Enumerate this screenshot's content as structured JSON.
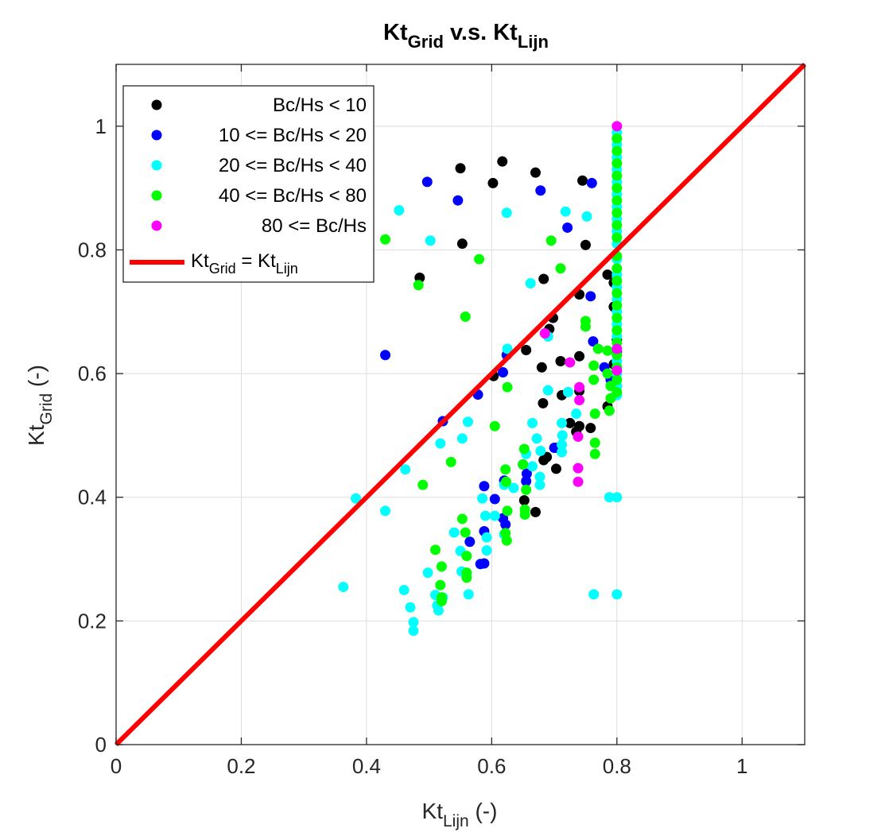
{
  "chart_data": {
    "type": "scatter",
    "title": {
      "main": "Kt",
      "sub1": "Grid",
      "mid": " v.s. Kt",
      "sub2": "Lijn"
    },
    "xlabel": {
      "main": "Kt",
      "sub": "Lijn",
      "suffix": " (-)"
    },
    "ylabel": {
      "main": "Kt",
      "sub": "Grid",
      "suffix": " (-)"
    },
    "xlim": [
      0,
      1.1
    ],
    "ylim": [
      0,
      1.1
    ],
    "xticks": [
      0,
      0.2,
      0.4,
      0.6,
      0.8,
      1
    ],
    "yticks": [
      0,
      0.2,
      0.4,
      0.6,
      0.8,
      1
    ],
    "xtick_labels": [
      "0",
      "0.2",
      "0.4",
      "0.6",
      "0.8",
      "1"
    ],
    "ytick_labels": [
      "0",
      "0.2",
      "0.4",
      "0.6",
      "0.8",
      "1"
    ],
    "grid": true,
    "legend_position": "top-left",
    "colors": {
      "black": "#000000",
      "blue": "#0000ff",
      "cyan": "#00ffff",
      "green": "#00ff00",
      "magenta": "#ff00ff",
      "red": "#ff0000"
    },
    "reference_line": {
      "label": {
        "main": "Kt",
        "sub1": "Grid",
        "mid": " = Kt",
        "sub2": "Lijn"
      },
      "color": "#ff0000",
      "x": [
        0,
        1.1
      ],
      "y": [
        0,
        1.1
      ]
    },
    "series": [
      {
        "name": "Bc/Hs < 10",
        "color": "#000000",
        "points": [
          [
            0.485,
            0.755
          ],
          [
            0.55,
            0.932
          ],
          [
            0.553,
            0.81
          ],
          [
            0.602,
            0.908
          ],
          [
            0.617,
            0.943
          ],
          [
            0.67,
            0.925
          ],
          [
            0.683,
            0.753
          ],
          [
            0.745,
            0.912
          ],
          [
            0.75,
            0.808
          ],
          [
            0.74,
            0.728
          ],
          [
            0.785,
            0.76
          ],
          [
            0.795,
            0.747
          ],
          [
            0.795,
            0.708
          ],
          [
            0.8,
            0.655
          ],
          [
            0.692,
            0.672
          ],
          [
            0.698,
            0.69
          ],
          [
            0.655,
            0.638
          ],
          [
            0.68,
            0.61
          ],
          [
            0.74,
            0.628
          ],
          [
            0.71,
            0.62
          ],
          [
            0.603,
            0.596
          ],
          [
            0.795,
            0.615
          ],
          [
            0.795,
            0.588
          ],
          [
            0.8,
            0.58
          ],
          [
            0.74,
            0.572
          ],
          [
            0.712,
            0.565
          ],
          [
            0.682,
            0.552
          ],
          [
            0.725,
            0.52
          ],
          [
            0.74,
            0.515
          ],
          [
            0.735,
            0.506
          ],
          [
            0.758,
            0.512
          ],
          [
            0.785,
            0.547
          ],
          [
            0.705,
            0.48
          ],
          [
            0.688,
            0.465
          ],
          [
            0.683,
            0.46
          ],
          [
            0.703,
            0.446
          ],
          [
            0.652,
            0.395
          ],
          [
            0.67,
            0.376
          ]
        ]
      },
      {
        "name": "10 <= Bc/Hs < 20",
        "color": "#0000ff",
        "points": [
          [
            0.497,
            0.91
          ],
          [
            0.546,
            0.88
          ],
          [
            0.678,
            0.896
          ],
          [
            0.76,
            0.908
          ],
          [
            0.721,
            0.836
          ],
          [
            0.758,
            0.725
          ],
          [
            0.43,
            0.63
          ],
          [
            0.762,
            0.652
          ],
          [
            0.624,
            0.63
          ],
          [
            0.618,
            0.602
          ],
          [
            0.578,
            0.566
          ],
          [
            0.522,
            0.523
          ],
          [
            0.78,
            0.61
          ],
          [
            0.79,
            0.59
          ],
          [
            0.8,
            0.635
          ],
          [
            0.65,
            0.453
          ],
          [
            0.656,
            0.438
          ],
          [
            0.655,
            0.426
          ],
          [
            0.62,
            0.427
          ],
          [
            0.588,
            0.418
          ],
          [
            0.605,
            0.397
          ],
          [
            0.618,
            0.366
          ],
          [
            0.622,
            0.356
          ],
          [
            0.588,
            0.345
          ],
          [
            0.565,
            0.328
          ],
          [
            0.582,
            0.292
          ],
          [
            0.588,
            0.293
          ],
          [
            0.7,
            0.48
          ]
        ]
      },
      {
        "name": "20 <= Bc/Hs < 40",
        "color": "#00ffff",
        "points": [
          [
            0.452,
            0.864
          ],
          [
            0.502,
            0.815
          ],
          [
            0.624,
            0.86
          ],
          [
            0.718,
            0.862
          ],
          [
            0.752,
            0.854
          ],
          [
            0.662,
            0.746
          ],
          [
            0.69,
            0.66
          ],
          [
            0.625,
            0.64
          ],
          [
            0.69,
            0.573
          ],
          [
            0.722,
            0.57
          ],
          [
            0.712,
            0.52
          ],
          [
            0.713,
            0.5
          ],
          [
            0.712,
            0.485
          ],
          [
            0.712,
            0.473
          ],
          [
            0.735,
            0.535
          ],
          [
            0.665,
            0.52
          ],
          [
            0.672,
            0.495
          ],
          [
            0.678,
            0.475
          ],
          [
            0.562,
            0.522
          ],
          [
            0.518,
            0.487
          ],
          [
            0.553,
            0.495
          ],
          [
            0.655,
            0.47
          ],
          [
            0.665,
            0.45
          ],
          [
            0.677,
            0.433
          ],
          [
            0.677,
            0.42
          ],
          [
            0.635,
            0.415
          ],
          [
            0.62,
            0.42
          ],
          [
            0.585,
            0.398
          ],
          [
            0.59,
            0.37
          ],
          [
            0.605,
            0.37
          ],
          [
            0.383,
            0.398
          ],
          [
            0.43,
            0.378
          ],
          [
            0.462,
            0.445
          ],
          [
            0.54,
            0.343
          ],
          [
            0.592,
            0.335
          ],
          [
            0.55,
            0.313
          ],
          [
            0.592,
            0.314
          ],
          [
            0.62,
            0.34
          ],
          [
            0.498,
            0.278
          ],
          [
            0.552,
            0.28
          ],
          [
            0.563,
            0.243
          ],
          [
            0.51,
            0.242
          ],
          [
            0.522,
            0.238
          ],
          [
            0.513,
            0.225
          ],
          [
            0.515,
            0.217
          ],
          [
            0.46,
            0.25
          ],
          [
            0.47,
            0.222
          ],
          [
            0.475,
            0.198
          ],
          [
            0.475,
            0.184
          ],
          [
            0.363,
            0.255
          ],
          [
            0.788,
            0.4
          ],
          [
            0.8,
            0.4
          ],
          [
            0.763,
            0.243
          ],
          [
            0.8,
            0.243
          ],
          [
            0.8,
            0.565
          ],
          [
            0.8,
            0.58
          ],
          [
            0.8,
            0.6
          ],
          [
            0.8,
            0.62
          ],
          [
            0.8,
            0.64
          ],
          [
            0.8,
            0.66
          ],
          [
            0.8,
            0.68
          ],
          [
            0.8,
            0.7
          ],
          [
            0.8,
            0.72
          ],
          [
            0.8,
            0.74
          ],
          [
            0.8,
            0.76
          ],
          [
            0.8,
            0.785
          ],
          [
            0.8,
            0.81
          ],
          [
            0.8,
            0.83
          ],
          [
            0.8,
            0.85
          ],
          [
            0.8,
            0.87
          ],
          [
            0.8,
            0.89
          ],
          [
            0.8,
            0.91
          ],
          [
            0.8,
            0.93
          ],
          [
            0.8,
            0.95
          ],
          [
            0.8,
            0.97
          ],
          [
            0.8,
            0.99
          ]
        ]
      },
      {
        "name": "40 <= Bc/Hs < 80",
        "color": "#00ff00",
        "points": [
          [
            0.43,
            0.817
          ],
          [
            0.695,
            0.815
          ],
          [
            0.58,
            0.785
          ],
          [
            0.71,
            0.77
          ],
          [
            0.483,
            0.743
          ],
          [
            0.558,
            0.692
          ],
          [
            0.75,
            0.685
          ],
          [
            0.75,
            0.676
          ],
          [
            0.77,
            0.64
          ],
          [
            0.785,
            0.637
          ],
          [
            0.625,
            0.578
          ],
          [
            0.763,
            0.613
          ],
          [
            0.763,
            0.59
          ],
          [
            0.785,
            0.6
          ],
          [
            0.79,
            0.58
          ],
          [
            0.79,
            0.56
          ],
          [
            0.788,
            0.54
          ],
          [
            0.765,
            0.535
          ],
          [
            0.605,
            0.515
          ],
          [
            0.535,
            0.457
          ],
          [
            0.652,
            0.478
          ],
          [
            0.765,
            0.488
          ],
          [
            0.765,
            0.47
          ],
          [
            0.65,
            0.453
          ],
          [
            0.622,
            0.445
          ],
          [
            0.623,
            0.425
          ],
          [
            0.655,
            0.412
          ],
          [
            0.625,
            0.378
          ],
          [
            0.653,
            0.38
          ],
          [
            0.653,
            0.372
          ],
          [
            0.49,
            0.42
          ],
          [
            0.553,
            0.365
          ],
          [
            0.558,
            0.343
          ],
          [
            0.622,
            0.342
          ],
          [
            0.624,
            0.33
          ],
          [
            0.51,
            0.315
          ],
          [
            0.52,
            0.288
          ],
          [
            0.56,
            0.305
          ],
          [
            0.56,
            0.278
          ],
          [
            0.56,
            0.27
          ],
          [
            0.518,
            0.258
          ],
          [
            0.52,
            0.238
          ],
          [
            0.52,
            0.232
          ],
          [
            0.8,
            0.57
          ],
          [
            0.8,
            0.59
          ],
          [
            0.8,
            0.61
          ],
          [
            0.8,
            0.63
          ],
          [
            0.8,
            0.65
          ],
          [
            0.8,
            0.67
          ],
          [
            0.8,
            0.69
          ],
          [
            0.8,
            0.71
          ],
          [
            0.8,
            0.73
          ],
          [
            0.8,
            0.75
          ],
          [
            0.8,
            0.77
          ],
          [
            0.8,
            0.79
          ],
          [
            0.8,
            0.82
          ],
          [
            0.8,
            0.84
          ],
          [
            0.8,
            0.86
          ],
          [
            0.8,
            0.88
          ],
          [
            0.8,
            0.9
          ],
          [
            0.8,
            0.92
          ],
          [
            0.8,
            0.94
          ],
          [
            0.8,
            0.96
          ],
          [
            0.8,
            0.98
          ]
        ]
      },
      {
        "name": "80 <= Bc/Hs",
        "color": "#ff00ff",
        "points": [
          [
            0.685,
            0.665
          ],
          [
            0.725,
            0.618
          ],
          [
            0.74,
            0.578
          ],
          [
            0.74,
            0.557
          ],
          [
            0.738,
            0.498
          ],
          [
            0.738,
            0.447
          ],
          [
            0.738,
            0.425
          ],
          [
            0.8,
            0.605
          ],
          [
            0.8,
            0.64
          ],
          [
            0.8,
            1.0
          ]
        ]
      }
    ]
  }
}
